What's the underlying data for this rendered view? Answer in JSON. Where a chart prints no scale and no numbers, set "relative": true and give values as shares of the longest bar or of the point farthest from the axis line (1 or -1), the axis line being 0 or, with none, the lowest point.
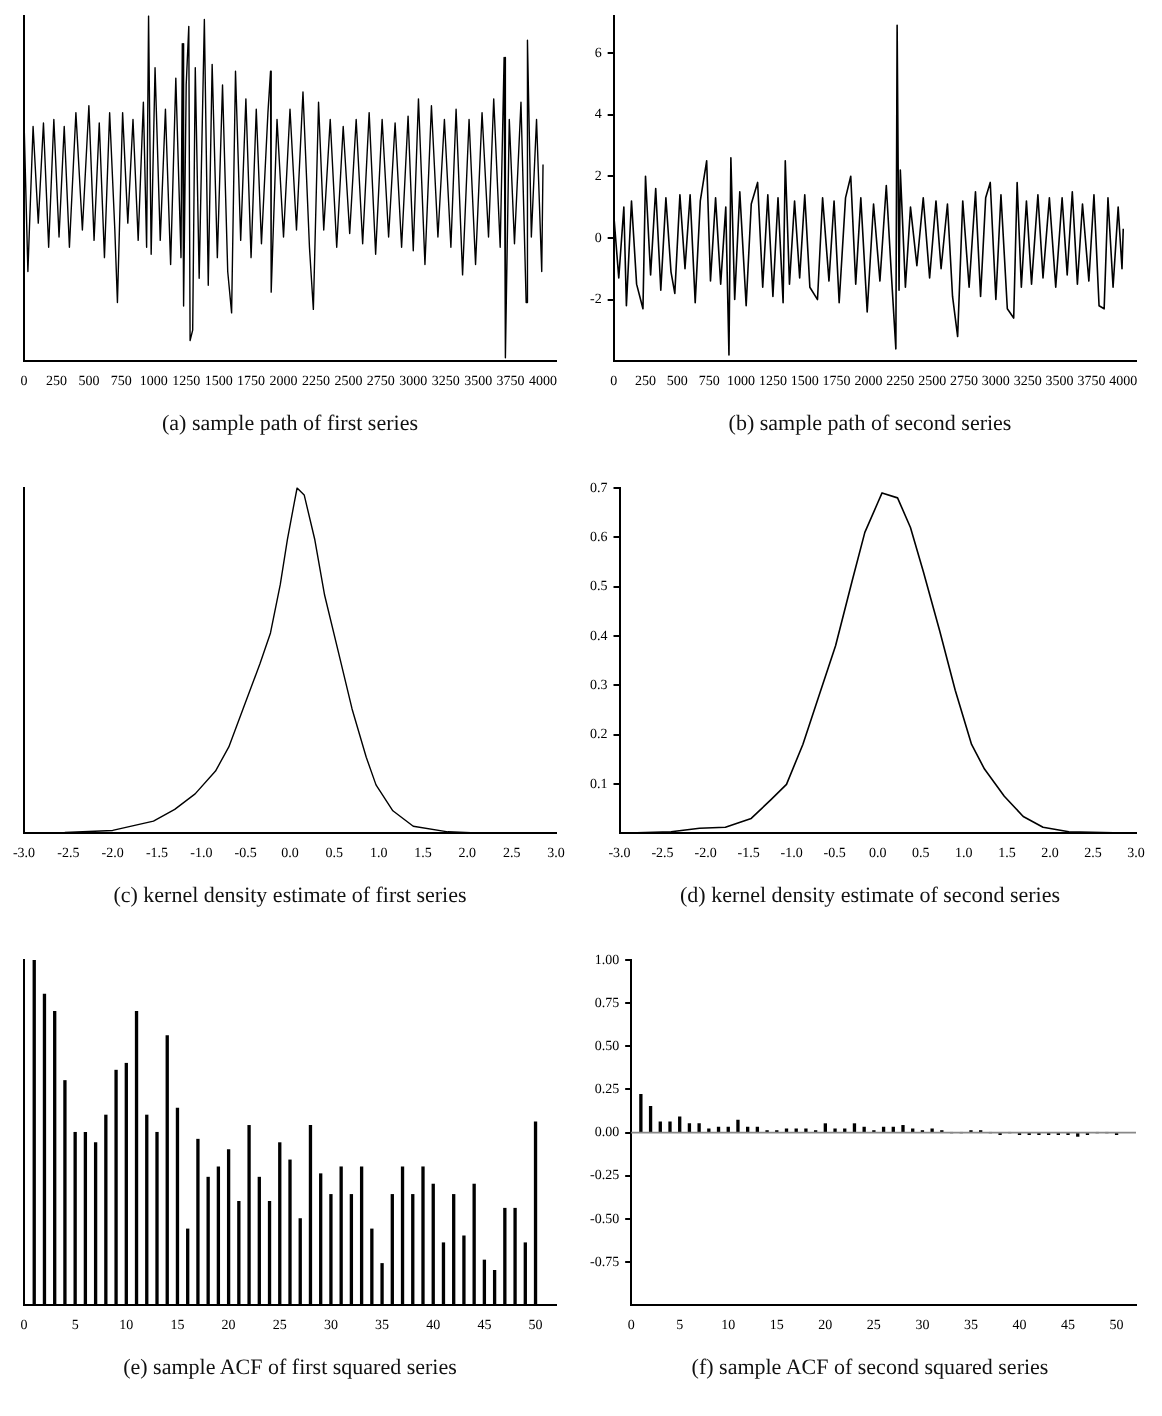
{
  "chart_data": [
    {
      "type": "line",
      "title": "(a) sample path of first series",
      "relative": true,
      "tick_labels": "x",
      "marker": "none",
      "line_style": "solid",
      "xlim": [
        0,
        4100
      ],
      "xticks": [
        0,
        250,
        500,
        750,
        1000,
        1250,
        1500,
        1750,
        2000,
        2250,
        2500,
        2750,
        3000,
        3250,
        3500,
        3750,
        4000
      ],
      "series": [
        {
          "color": "#000000",
          "x": [
            0,
            30,
            70,
            110,
            150,
            190,
            230,
            270,
            310,
            350,
            400,
            450,
            500,
            540,
            580,
            620,
            660,
            700,
            720,
            760,
            800,
            840,
            880,
            920,
            945,
            960,
            980,
            1010,
            1050,
            1090,
            1130,
            1170,
            1210,
            1220,
            1230,
            1250,
            1270,
            1280,
            1300,
            1320,
            1350,
            1390,
            1420,
            1450,
            1490,
            1530,
            1570,
            1600,
            1630,
            1670,
            1710,
            1750,
            1790,
            1830,
            1880,
            1900,
            1905,
            1950,
            2000,
            2050,
            2100,
            2150,
            2200,
            2230,
            2270,
            2310,
            2360,
            2410,
            2460,
            2510,
            2560,
            2610,
            2660,
            2710,
            2760,
            2810,
            2860,
            2910,
            2960,
            3000,
            3040,
            3090,
            3140,
            3190,
            3240,
            3290,
            3330,
            3380,
            3430,
            3480,
            3530,
            3580,
            3620,
            3670,
            3700,
            3710,
            3740,
            3780,
            3830,
            3870,
            3880,
            3910,
            3950,
            3990,
            4000
          ],
          "values": [
            0.7,
            0.26,
            0.68,
            0.4,
            0.69,
            0.33,
            0.7,
            0.36,
            0.68,
            0.33,
            0.72,
            0.38,
            0.74,
            0.35,
            0.69,
            0.3,
            0.72,
            0.38,
            0.17,
            0.72,
            0.4,
            0.7,
            0.35,
            0.75,
            0.33,
            1.0,
            0.31,
            0.85,
            0.35,
            0.73,
            0.28,
            0.82,
            0.3,
            0.92,
            0.16,
            0.8,
            0.97,
            0.06,
            0.09,
            0.85,
            0.24,
            0.99,
            0.22,
            0.86,
            0.3,
            0.8,
            0.26,
            0.14,
            0.84,
            0.35,
            0.76,
            0.3,
            0.73,
            0.34,
            0.72,
            0.84,
            0.2,
            0.7,
            0.36,
            0.73,
            0.38,
            0.78,
            0.33,
            0.15,
            0.75,
            0.38,
            0.7,
            0.33,
            0.68,
            0.37,
            0.7,
            0.34,
            0.72,
            0.31,
            0.7,
            0.36,
            0.69,
            0.33,
            0.71,
            0.32,
            0.76,
            0.28,
            0.74,
            0.36,
            0.7,
            0.33,
            0.73,
            0.25,
            0.7,
            0.28,
            0.72,
            0.36,
            0.76,
            0.33,
            0.88,
            0.01,
            0.7,
            0.34,
            0.75,
            0.17,
            0.93,
            0.36,
            0.7,
            0.26,
            0.57
          ]
        }
      ]
    },
    {
      "type": "line",
      "title": "(b) sample path of second series",
      "marker": "none",
      "line_style": "solid",
      "xlim": [
        0,
        4100
      ],
      "xticks": [
        0,
        250,
        500,
        750,
        1000,
        1250,
        1500,
        1750,
        2000,
        2250,
        2500,
        2750,
        3000,
        3250,
        3500,
        3750,
        4000
      ],
      "ylim": [
        -4,
        7.2
      ],
      "yticks": [
        -2,
        0,
        2,
        4,
        6
      ],
      "series": [
        {
          "color": "#000000",
          "x": [
            0,
            40,
            80,
            100,
            140,
            180,
            230,
            250,
            290,
            330,
            370,
            410,
            450,
            480,
            520,
            560,
            600,
            640,
            680,
            730,
            760,
            800,
            840,
            880,
            905,
            920,
            950,
            990,
            1040,
            1080,
            1130,
            1170,
            1210,
            1250,
            1290,
            1330,
            1347,
            1380,
            1420,
            1460,
            1500,
            1540,
            1600,
            1640,
            1690,
            1730,
            1770,
            1820,
            1861,
            1900,
            1940,
            1990,
            2040,
            2090,
            2140,
            2180,
            2215,
            2225,
            2240,
            2250,
            2290,
            2330,
            2380,
            2430,
            2480,
            2530,
            2570,
            2620,
            2660,
            2700,
            2740,
            2790,
            2840,
            2880,
            2920,
            2956,
            3000,
            3040,
            3090,
            3140,
            3167,
            3200,
            3240,
            3280,
            3330,
            3370,
            3420,
            3470,
            3520,
            3560,
            3600,
            3640,
            3680,
            3730,
            3770,
            3810,
            3850,
            3880,
            3920,
            3960,
            3990,
            4000
          ],
          "values": [
            0.8,
            -1.3,
            1.0,
            -2.2,
            1.2,
            -1.5,
            -2.3,
            2.0,
            -1.2,
            1.6,
            -1.7,
            1.3,
            -1.1,
            -1.8,
            1.4,
            -1.0,
            1.4,
            -2.1,
            1.2,
            2.5,
            -1.4,
            1.3,
            -1.5,
            1.0,
            -3.8,
            2.6,
            -2.0,
            1.5,
            -2.2,
            1.1,
            1.8,
            -1.6,
            1.4,
            -1.9,
            1.3,
            -2.1,
            2.5,
            -1.5,
            1.2,
            -1.3,
            1.4,
            -1.6,
            -2.0,
            1.3,
            -1.4,
            1.2,
            -2.1,
            1.3,
            2.0,
            -1.5,
            1.3,
            -2.4,
            1.1,
            -1.4,
            1.7,
            -1.2,
            -3.6,
            6.9,
            -1.7,
            2.2,
            -1.6,
            1.0,
            -0.9,
            1.3,
            -1.3,
            1.2,
            -1.0,
            1.1,
            -1.9,
            -3.2,
            1.2,
            -1.6,
            1.5,
            -1.9,
            1.3,
            1.8,
            -2.0,
            1.4,
            -2.3,
            -2.6,
            1.8,
            -1.6,
            1.2,
            -1.5,
            1.4,
            -1.3,
            1.3,
            -1.6,
            1.3,
            -1.2,
            1.5,
            -1.5,
            1.1,
            -1.4,
            1.4,
            -2.2,
            -2.3,
            1.3,
            -1.6,
            1.0,
            -1.0,
            0.3
          ]
        }
      ]
    },
    {
      "type": "line",
      "title": "(c) kernel density estimate of first series",
      "relative": true,
      "tick_labels": "x",
      "marker": "none",
      "line_style": "solid",
      "xlim": [
        -3,
        3
      ],
      "xticks": [
        {
          "value": -3,
          "label": "-3.0"
        },
        {
          "value": -2.5,
          "label": "-2.5"
        },
        {
          "value": -2,
          "label": "-2.0"
        },
        {
          "value": -1.5,
          "label": "-1.5"
        },
        {
          "value": -1,
          "label": "-1.0"
        },
        {
          "value": -0.5,
          "label": "-0.5"
        },
        {
          "value": 0,
          "label": "0.0"
        },
        {
          "value": 0.5,
          "label": "0.5"
        },
        {
          "value": 1,
          "label": "1.0"
        },
        {
          "value": 1.5,
          "label": "1.5"
        },
        {
          "value": 2,
          "label": "2.0"
        },
        {
          "value": 2.5,
          "label": "2.5"
        },
        {
          "value": 3,
          "label": "3.0"
        }
      ],
      "series": [
        {
          "color": "#000000",
          "x": [
            -3,
            -2.54,
            -2.0,
            -1.54,
            -1.3,
            -1.07,
            -0.84,
            -0.69,
            -0.53,
            -0.34,
            -0.22,
            -0.11,
            -0.03,
            0.05,
            0.08,
            0.16,
            0.28,
            0.39,
            0.55,
            0.7,
            0.86,
            0.97,
            1.16,
            1.39,
            1.78,
            2.17,
            3
          ],
          "values": [
            0,
            0.002,
            0.008,
            0.035,
            0.069,
            0.114,
            0.18,
            0.25,
            0.36,
            0.49,
            0.58,
            0.72,
            0.85,
            0.96,
            1,
            0.98,
            0.85,
            0.69,
            0.52,
            0.36,
            0.22,
            0.14,
            0.065,
            0.02,
            0.004,
            0,
            0
          ]
        }
      ]
    },
    {
      "type": "line",
      "title": "(d) kernel density estimate of second series",
      "marker": "none",
      "line_style": "solid",
      "xlim": [
        -3,
        3
      ],
      "ylim": [
        0,
        0.7
      ],
      "yticks": [
        0.1,
        0.2,
        0.3,
        0.4,
        0.5,
        0.6,
        0.7
      ],
      "xticks": [
        {
          "value": -3,
          "label": "-3.0"
        },
        {
          "value": -2.5,
          "label": "-2.5"
        },
        {
          "value": -2,
          "label": "-2.0"
        },
        {
          "value": -1.5,
          "label": "-1.5"
        },
        {
          "value": -1,
          "label": "-1.0"
        },
        {
          "value": -0.5,
          "label": "-0.5"
        },
        {
          "value": 0,
          "label": "0.0"
        },
        {
          "value": 0.5,
          "label": "0.5"
        },
        {
          "value": 1,
          "label": "1.0"
        },
        {
          "value": 1.5,
          "label": "1.5"
        },
        {
          "value": 2,
          "label": "2.0"
        },
        {
          "value": 2.5,
          "label": "2.5"
        },
        {
          "value": 3,
          "label": "3.0"
        }
      ],
      "series": [
        {
          "color": "#000000",
          "x": [
            -3,
            -2.4,
            -2.07,
            -1.77,
            -1.47,
            -1.24,
            -1.06,
            -0.87,
            -0.68,
            -0.49,
            -0.3,
            -0.15,
            0.0,
            0.05,
            0.23,
            0.38,
            0.53,
            0.72,
            0.9,
            1.09,
            1.24,
            1.47,
            1.69,
            1.92,
            2.22,
            3
          ],
          "values": [
            0,
            0.003,
            0.01,
            0.012,
            0.03,
            0.068,
            0.099,
            0.18,
            0.28,
            0.38,
            0.51,
            0.61,
            0.67,
            0.69,
            0.68,
            0.62,
            0.53,
            0.41,
            0.29,
            0.18,
            0.13,
            0.075,
            0.034,
            0.012,
            0.003,
            0
          ]
        }
      ]
    },
    {
      "type": "bar",
      "title": "(e) sample ACF of first squared series",
      "relative": true,
      "tick_labels": "x",
      "xlim": [
        0,
        52
      ],
      "xticks": [
        0,
        5,
        10,
        15,
        20,
        25,
        30,
        35,
        40,
        45,
        50
      ],
      "series": [
        {
          "color": "#000000",
          "x": [
            1,
            2,
            3,
            4,
            5,
            6,
            7,
            8,
            9,
            10,
            11,
            12,
            13,
            14,
            15,
            16,
            17,
            18,
            19,
            20,
            21,
            22,
            23,
            24,
            25,
            26,
            27,
            28,
            29,
            30,
            31,
            32,
            33,
            34,
            35,
            36,
            37,
            38,
            39,
            40,
            41,
            42,
            43,
            44,
            45,
            46,
            47,
            48,
            49,
            50
          ],
          "values": [
            1.0,
            0.9,
            0.85,
            0.65,
            0.5,
            0.5,
            0.47,
            0.55,
            0.68,
            0.7,
            0.85,
            0.55,
            0.5,
            0.78,
            0.57,
            0.22,
            0.48,
            0.37,
            0.4,
            0.45,
            0.3,
            0.52,
            0.37,
            0.3,
            0.47,
            0.42,
            0.25,
            0.52,
            0.38,
            0.32,
            0.4,
            0.32,
            0.4,
            0.22,
            0.12,
            0.32,
            0.4,
            0.32,
            0.4,
            0.35,
            0.18,
            0.32,
            0.2,
            0.35,
            0.13,
            0.1,
            0.28,
            0.28,
            0.18,
            0.53
          ]
        }
      ]
    },
    {
      "type": "bar",
      "title": "(f) sample ACF of second squared series",
      "xlim": [
        0,
        52
      ],
      "xticks": [
        0,
        5,
        10,
        15,
        20,
        25,
        30,
        35,
        40,
        45,
        50
      ],
      "ylim": [
        -1,
        1
      ],
      "yticks": [
        {
          "value": -0.75,
          "label": "-0.75"
        },
        {
          "value": -0.5,
          "label": "-0.50"
        },
        {
          "value": -0.25,
          "label": "-0.25"
        },
        {
          "value": 0,
          "label": "0.00"
        },
        {
          "value": 0.25,
          "label": "0.25"
        },
        {
          "value": 0.5,
          "label": "0.50"
        },
        {
          "value": 0.75,
          "label": "0.75"
        },
        {
          "value": 1,
          "label": "1.00"
        }
      ],
      "series": [
        {
          "color": "#000000",
          "x": [
            1,
            2,
            3,
            4,
            5,
            6,
            7,
            8,
            9,
            10,
            11,
            12,
            13,
            14,
            15,
            16,
            17,
            18,
            19,
            20,
            21,
            22,
            23,
            24,
            25,
            26,
            27,
            28,
            29,
            30,
            31,
            32,
            33,
            34,
            35,
            36,
            37,
            38,
            39,
            40,
            41,
            42,
            43,
            44,
            45,
            46,
            47,
            48,
            49,
            50
          ],
          "values": [
            0.22,
            0.15,
            0.06,
            0.06,
            0.09,
            0.05,
            0.05,
            0.02,
            0.03,
            0.03,
            0.07,
            0.03,
            0.03,
            0.01,
            0.01,
            0.02,
            0.02,
            0.02,
            0.01,
            0.05,
            0.02,
            0.02,
            0.05,
            0.03,
            0.01,
            0.03,
            0.03,
            0.04,
            0.02,
            0.01,
            0.02,
            0.01,
            0,
            0,
            0.01,
            0.01,
            0,
            -0.01,
            0,
            -0.01,
            -0.01,
            -0.01,
            -0.01,
            -0.01,
            -0.01,
            -0.02,
            -0.01,
            0,
            0,
            -0.01
          ]
        }
      ]
    }
  ]
}
